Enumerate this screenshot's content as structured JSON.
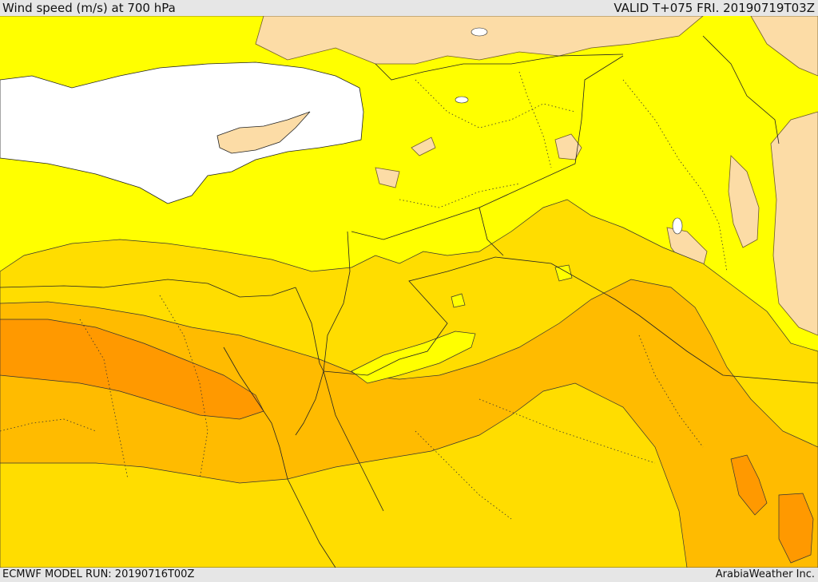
{
  "header": {
    "title": "Wind speed (m/s) at 700 hPa",
    "valid": "VALID T+075 FRI. 20190719T03Z"
  },
  "footer": {
    "model_run": "ECMWF MODEL RUN: 20190716T00Z",
    "credit": "ArabiaWeather Inc."
  },
  "colors": {
    "calm": "#fcdca6",
    "light": "#ffff00",
    "moderate": "#ffdd00",
    "strong": "#ffbb00",
    "very_strong": "#ff9900",
    "sea": "#ffffff",
    "background": "#e6e6e6"
  }
}
